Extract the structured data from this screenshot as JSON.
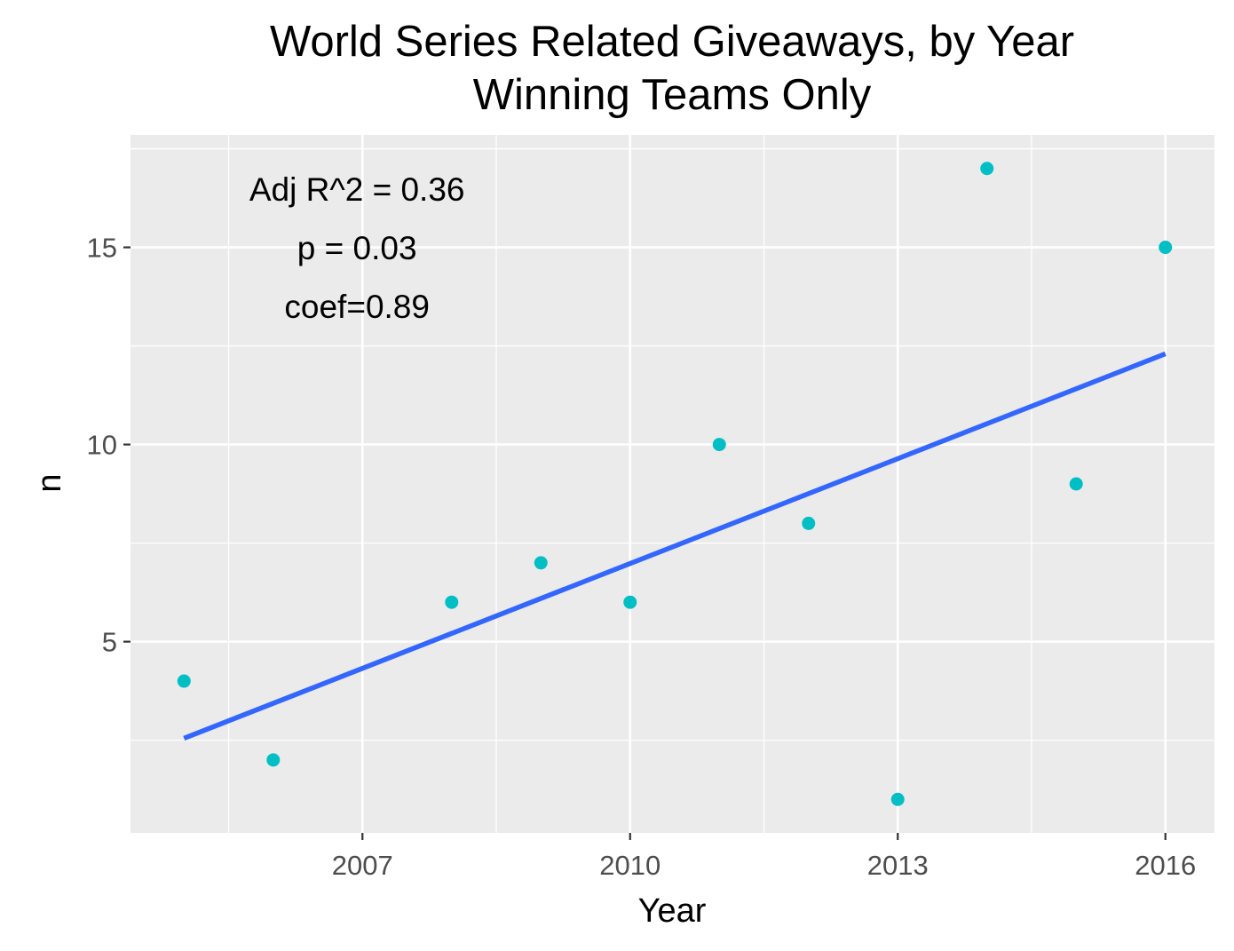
{
  "chart_data": {
    "type": "scatter",
    "title": "World Series Related Giveaways, by Year",
    "subtitle": "Winning Teams Only",
    "xlabel": "Year",
    "ylabel": "n",
    "xlim": [
      2004.4,
      2016.55
    ],
    "ylim": [
      0.15,
      17.85
    ],
    "x_ticks": [
      2007,
      2010,
      2013,
      2016
    ],
    "x_tick_labels": [
      "2007",
      "2010",
      "2013",
      "2016"
    ],
    "x_minor_ticks": [
      2005.5,
      2008.5,
      2011.5,
      2014.5
    ],
    "y_ticks": [
      5,
      10,
      15
    ],
    "y_tick_labels": [
      "5",
      "10",
      "15"
    ],
    "y_minor_ticks": [
      2.5,
      7.5,
      12.5,
      17.5
    ],
    "grid": true,
    "point_color": "#00BFC4",
    "line_color": "#3366FF",
    "panel_background": "#EBEBEB",
    "grid_color": "#FFFFFF",
    "points": [
      {
        "x": 2005,
        "y": 4
      },
      {
        "x": 2006,
        "y": 2
      },
      {
        "x": 2008,
        "y": 6
      },
      {
        "x": 2009,
        "y": 7
      },
      {
        "x": 2010,
        "y": 6
      },
      {
        "x": 2011,
        "y": 10
      },
      {
        "x": 2012,
        "y": 8
      },
      {
        "x": 2013,
        "y": 1
      },
      {
        "x": 2014,
        "y": 17
      },
      {
        "x": 2015,
        "y": 9
      },
      {
        "x": 2016,
        "y": 15
      }
    ],
    "trend_line": {
      "x": [
        2005,
        2016
      ],
      "y": [
        2.55,
        12.3
      ]
    },
    "annotations": [
      "Adj R^2 = 0.36",
      "p = 0.03",
      "coef=0.89"
    ]
  }
}
